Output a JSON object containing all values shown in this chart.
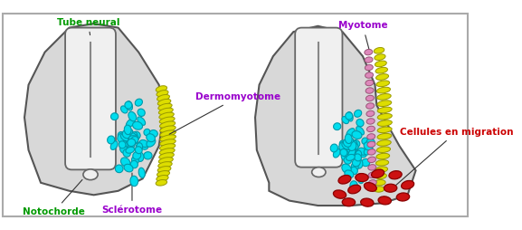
{
  "fig_bg": "#ffffff",
  "body_color": "#d8d8d8",
  "body_edge": "#555555",
  "neural_tube_color": "#f0f0f0",
  "neural_tube_edge": "#666666",
  "sclerotome_color": "#00ddee",
  "sclerotome_edge": "#0099aa",
  "dermomyotome_color": "#dddd00",
  "dermomyotome_edge": "#999900",
  "myotome_color": "#dd88bb",
  "myotome_edge": "#995577",
  "migration_color": "#cc1111",
  "migration_edge": "#880000",
  "label_tube_neural": "Tube neural",
  "label_tube_neural_color": "#009900",
  "label_dermomyotome": "Dermomyotome",
  "label_dermomyotome_color": "#9900cc",
  "label_sclerotome": "Sclérotome",
  "label_sclerotome_color": "#9900cc",
  "label_notochorde": "Notochorde",
  "label_notochorde_color": "#009900",
  "label_myotome": "Myotome",
  "label_myotome_color": "#9900cc",
  "label_migration": "Cellules en migration",
  "label_migration_color": "#cc0000",
  "border_color": "#aaaaaa"
}
